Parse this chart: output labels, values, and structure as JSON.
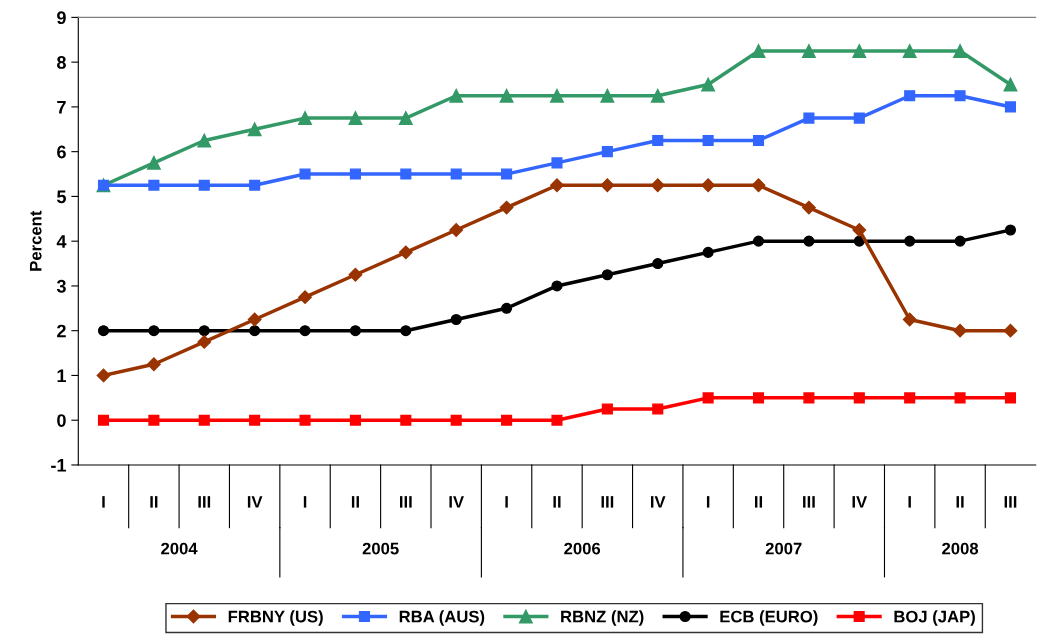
{
  "chart_data": {
    "type": "line",
    "ylabel": "Percent",
    "categories": [
      "I",
      "II",
      "III",
      "IV",
      "I",
      "II",
      "III",
      "IV",
      "I",
      "II",
      "III",
      "IV",
      "I",
      "II",
      "III",
      "IV",
      "I",
      "II",
      "III"
    ],
    "annotations": [
      "2004",
      "2005",
      "2006",
      "2007",
      "2008"
    ],
    "ylim": [
      -1,
      9
    ],
    "yticks": [
      -1,
      0,
      1,
      2,
      3,
      4,
      5,
      6,
      7,
      8,
      9
    ],
    "grid": false,
    "legend": "bottom",
    "line_style": "solid",
    "series": [
      {
        "name": "FRBNY (US)",
        "color": "#993300",
        "marker": "diamond",
        "values": [
          1,
          1.25,
          1.75,
          2.25,
          2.75,
          3.25,
          3.75,
          4.25,
          4.75,
          5.25,
          5.25,
          5.25,
          5.25,
          5.25,
          4.75,
          4.25,
          2.25,
          2,
          2
        ]
      },
      {
        "name": "RBA (AUS)",
        "color": "#3366ff",
        "marker": "square",
        "values": [
          5.25,
          5.25,
          5.25,
          5.25,
          5.5,
          5.5,
          5.5,
          5.5,
          5.5,
          5.75,
          6,
          6.25,
          6.25,
          6.25,
          6.75,
          6.75,
          7.25,
          7.25,
          7
        ]
      },
      {
        "name": "RBNZ (NZ)",
        "color": "#339966",
        "marker": "triangle",
        "values": [
          5.25,
          5.75,
          6.25,
          6.5,
          6.75,
          6.75,
          6.75,
          7.25,
          7.25,
          7.25,
          7.25,
          7.25,
          7.5,
          8.25,
          8.25,
          8.25,
          8.25,
          8.25,
          7.5
        ]
      },
      {
        "name": "ECB (EURO)",
        "color": "#000000",
        "marker": "circle",
        "values": [
          2,
          2,
          2,
          2,
          2,
          2,
          2,
          2.25,
          2.5,
          3,
          3.25,
          3.5,
          3.75,
          4,
          4,
          4,
          4,
          4,
          4.25
        ]
      },
      {
        "name": "BOJ (JAP)",
        "color": "#ff0000",
        "marker": "square",
        "values": [
          0,
          0,
          0,
          0,
          0,
          0,
          0,
          0,
          0,
          0,
          0.25,
          0.25,
          0.5,
          0.5,
          0.5,
          0.5,
          0.5,
          0.5,
          0.5
        ]
      }
    ]
  }
}
